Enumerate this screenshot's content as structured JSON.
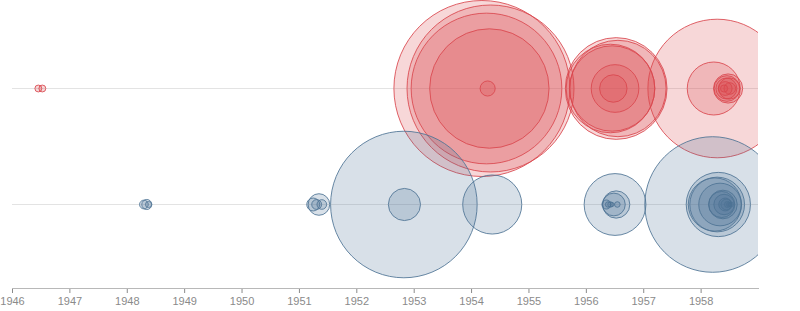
{
  "chart_data": {
    "type": "bubble",
    "xlim": [
      1946,
      1959
    ],
    "xticks": [
      1946,
      1947,
      1948,
      1949,
      1950,
      1951,
      1952,
      1953,
      1954,
      1955,
      1956,
      1957,
      1958
    ],
    "tick_labels": "x",
    "grid": false,
    "series": [
      {
        "color": "#d9474d",
        "x": [
          1946.45,
          1946.52,
          1954.18,
          1954.26,
          1954.28,
          1954.31,
          1954.33,
          1956.42,
          1956.45,
          1956.47,
          1956.5,
          1956.52,
          1956.55,
          1958.22,
          1958.28,
          1958.4,
          1958.42,
          1958.44,
          1958.45,
          1958.47,
          1958.49,
          1958.5
        ],
        "size": [
          23,
          23,
          15000,
          11000,
          110,
          6900,
          13500,
          3800,
          3530,
          365,
          1100,
          5010,
          4500,
          1360,
          9300,
          25,
          92,
          213,
          319,
          412,
          220,
          65
        ]
      },
      {
        "color": "#4d7394",
        "x": [
          1948.29,
          1948.34,
          1948.37,
          1951.24,
          1951.3,
          1951.34,
          1951.39,
          1952.82,
          1952.83,
          1954.36,
          1956.35,
          1956.38,
          1956.42,
          1956.45,
          1956.48,
          1956.5,
          1956.52,
          1956.54,
          1958.2,
          1958.24,
          1958.28,
          1958.3,
          1958.33,
          1958.36,
          1958.38,
          1958.4,
          1958.42,
          1958.44,
          1958.46,
          1958.48,
          1958.5,
          1958.52
        ],
        "size": [
          37,
          49,
          18,
          81,
          47,
          225,
          45,
          10400,
          500,
          1690,
          40,
          15,
          14,
          8,
          250,
          1850,
          360,
          15,
          8900,
          1370,
          1450,
          2000,
          880,
          330,
          397,
          202,
          81,
          57,
          18,
          9,
          6,
          11
        ]
      }
    ]
  }
}
